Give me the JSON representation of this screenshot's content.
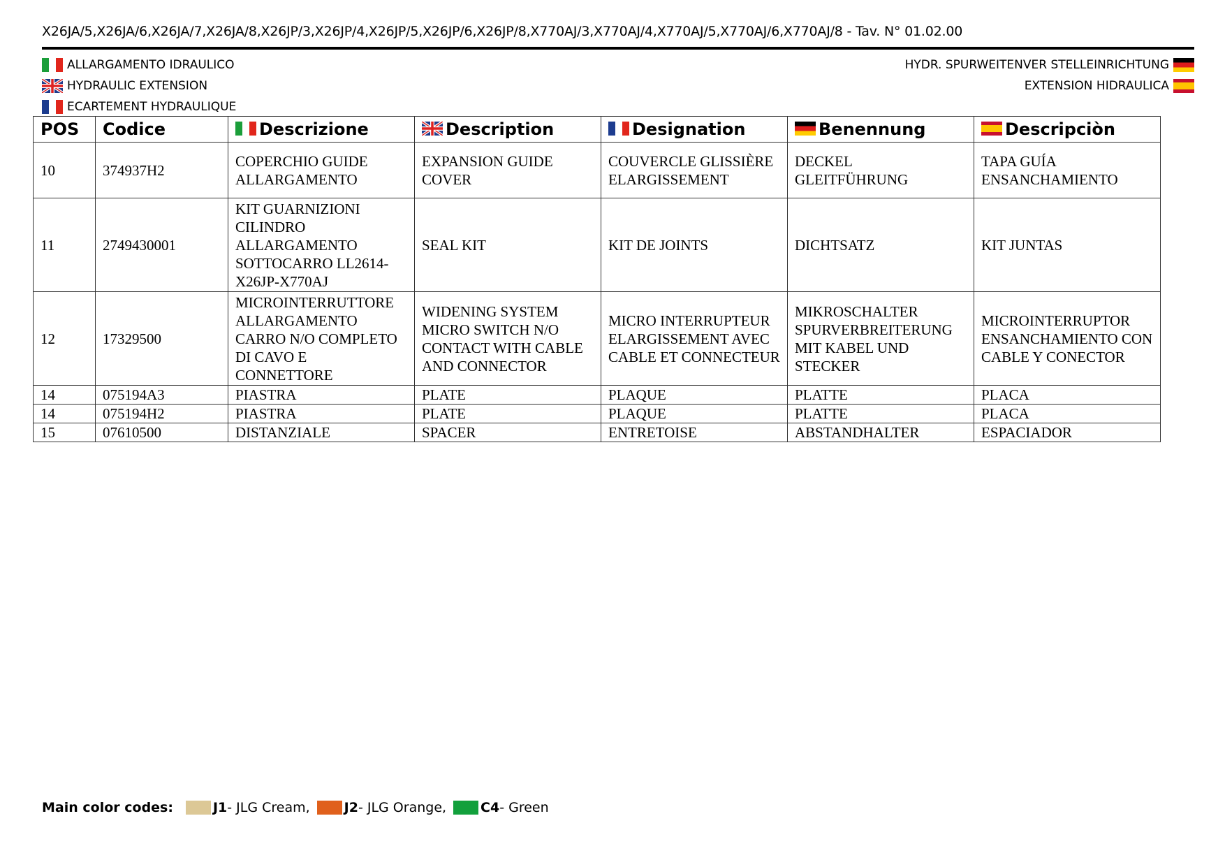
{
  "header": {
    "title": "X26JA/5,X26JA/6,X26JA/7,X26JA/8,X26JP/3,X26JP/4,X26JP/5,X26JP/6,X26JP/8,X770AJ/3,X770AJ/4,X770AJ/5,X770AJ/6,X770AJ/8 - Tav. N° 01.02.00"
  },
  "titles": {
    "it": "ALLARGAMENTO IDRAULICO",
    "en": "HYDRAULIC EXTENSION",
    "fr": "ECARTEMENT HYDRAULIQUE",
    "de": "HYDR. SPURWEITENVER STELLEINRICHTUNG",
    "es": "EXTENSION HIDRAULICA"
  },
  "table": {
    "headers": {
      "pos": "POS",
      "code": "Codice",
      "it": "Descrizione",
      "en": "Description",
      "fr": "Designation",
      "de": "Benennung",
      "es": "Descripciòn"
    },
    "rows": [
      {
        "pos": "10",
        "code": "374937H2",
        "it": "COPERCHIO GUIDE ALLARGAMENTO",
        "en": "EXPANSION GUIDE COVER",
        "fr": "COUVERCLE GLISSIÈRE ELARGISSEMENT",
        "de": "DECKEL GLEITFÜHRUNG",
        "es": "TAPA GUÍA ENSANCHAMIENTO"
      },
      {
        "pos": "11",
        "code": "2749430001",
        "it": "KIT GUARNIZIONI CILINDRO ALLARGAMENTO SOTTOCARRO LL2614-X26JP-X770AJ",
        "en": "SEAL KIT",
        "fr": "KIT DE JOINTS",
        "de": "DICHTSATZ",
        "es": "KIT JUNTAS"
      },
      {
        "pos": "12",
        "code": "17329500",
        "it": "MICROINTERRUTTORE ALLARGAMENTO CARRO N/O COMPLETO DI CAVO E CONNETTORE",
        "en": "WIDENING SYSTEM MICRO SWITCH N/O CONTACT WITH CABLE AND CONNECTOR",
        "fr": "MICRO INTERRUPTEUR ELARGISSEMENT AVEC CABLE ET CONNECTEUR",
        "de": "MIKROSCHALTER SPURVERBREITERUNG MIT KABEL UND STECKER",
        "es": "MICROINTERRUPTOR ENSANCHAMIENTO CON CABLE Y CONECTOR"
      },
      {
        "pos": "14",
        "code": "075194A3",
        "it": "PIASTRA",
        "en": "PLATE",
        "fr": "PLAQUE",
        "de": "PLATTE",
        "es": "PLACA"
      },
      {
        "pos": "14",
        "code": "075194H2",
        "it": "PIASTRA",
        "en": "PLATE",
        "fr": "PLAQUE",
        "de": "PLATTE",
        "es": "PLACA"
      },
      {
        "pos": "15",
        "code": "07610500",
        "it": "DISTANZIALE",
        "en": "SPACER",
        "fr": "ENTRETOISE",
        "de": "ABSTANDHALTER",
        "es": "ESPACIADOR"
      }
    ]
  },
  "legend": {
    "label": "Main color codes:",
    "items": [
      {
        "code": "J1",
        "text": " - JLG Cream,",
        "color": "#dcc896"
      },
      {
        "code": "J2",
        "text": " - JLG Orange,",
        "color": "#e0601c"
      },
      {
        "code": "C4",
        "text": " - Green",
        "color": "#12a03c"
      }
    ]
  }
}
